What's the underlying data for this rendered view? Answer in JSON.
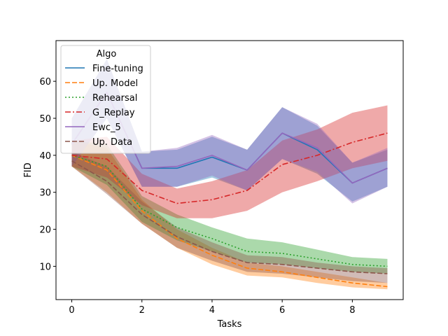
{
  "chart_data": {
    "type": "line",
    "title": "",
    "xlabel": "Tasks",
    "ylabel": "FID",
    "xlim": [
      -0.45,
      9.45
    ],
    "ylim": [
      1,
      71
    ],
    "xticks": [
      0,
      2,
      4,
      6,
      8
    ],
    "yticks": [
      10,
      20,
      30,
      40,
      50,
      60
    ],
    "grid": false,
    "legend": {
      "title": "Algo",
      "position": "top-left"
    },
    "x": [
      0,
      1,
      2,
      3,
      4,
      5,
      6,
      7,
      8,
      9
    ],
    "series": [
      {
        "name": "Fine-tuning",
        "color": "#1f77b4",
        "dash": "solid",
        "values": [
          43,
          57,
          36.5,
          36.5,
          39.5,
          36,
          46,
          41.5,
          32.5,
          36.5
        ],
        "lower": [
          37,
          50,
          31.5,
          31.5,
          34,
          30.5,
          39,
          35,
          27.5,
          31.5
        ],
        "upper": [
          50,
          66,
          41,
          41.5,
          45,
          41.5,
          53,
          48,
          38,
          41.5
        ]
      },
      {
        "name": "Up. Model",
        "color": "#ff7f0e",
        "dash": "dashed",
        "values": [
          40,
          36,
          25,
          17.5,
          13,
          9.5,
          8.5,
          7,
          5.5,
          4.5
        ],
        "lower": [
          37,
          30,
          21.5,
          15,
          10.5,
          7.5,
          7,
          5.5,
          4.3,
          3.8
        ],
        "upper": [
          44,
          42,
          28,
          20,
          15,
          11,
          10,
          8.5,
          7,
          5.5
        ]
      },
      {
        "name": "Rehearsal",
        "color": "#2ca02c",
        "dash": "dotted",
        "values": [
          40,
          37,
          25.5,
          20.5,
          17.5,
          14,
          13.5,
          12,
          10.5,
          10
        ],
        "lower": [
          37,
          32,
          22,
          17,
          14,
          11,
          10.5,
          9.5,
          8.5,
          8
        ],
        "upper": [
          44,
          43,
          29,
          24,
          20.5,
          17.5,
          16.5,
          14.5,
          12.5,
          12
        ]
      },
      {
        "name": "G_Replay",
        "color": "#d62728",
        "dash": "dashdot",
        "values": [
          40,
          39,
          30.5,
          27,
          28,
          30.5,
          37.5,
          40,
          43.5,
          46
        ],
        "lower": [
          37,
          34,
          26.5,
          23,
          23,
          25,
          30,
          33,
          36.5,
          38.5
        ],
        "upper": [
          44,
          45,
          35,
          31,
          33,
          36,
          44,
          47,
          51.5,
          53.5
        ]
      },
      {
        "name": "Ewc_5",
        "color": "#9467bd",
        "dash": "solid",
        "values": [
          43,
          57,
          36.5,
          37,
          40,
          36,
          46,
          42,
          32.5,
          36.5
        ],
        "lower": [
          37,
          50,
          31.5,
          31.5,
          34.5,
          30.5,
          39,
          35.5,
          27,
          31.5
        ],
        "upper": [
          50,
          66,
          41,
          42,
          45.5,
          41.5,
          53,
          48.5,
          38,
          42
        ]
      },
      {
        "name": "Up. Data",
        "color": "#8c564b",
        "dash": "dashed",
        "values": [
          38.5,
          33,
          24,
          18,
          14,
          11,
          10.5,
          9.5,
          8.5,
          8
        ],
        "lower": [
          37,
          29.5,
          21.5,
          15,
          11.5,
          8.5,
          8,
          7,
          6,
          5.5
        ],
        "upper": [
          41,
          37,
          27.5,
          20.5,
          16.5,
          13,
          12.5,
          11,
          10,
          9.5
        ]
      }
    ]
  }
}
